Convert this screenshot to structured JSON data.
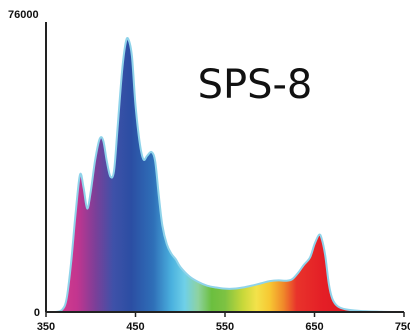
{
  "chart_data": {
    "type": "area",
    "title": "SPS-8",
    "xlabel": "",
    "ylabel": "",
    "xlim": [
      350,
      750
    ],
    "ylim": [
      0,
      76000
    ],
    "grid": false,
    "legend": "none",
    "x_ticks": [
      350,
      450,
      550,
      650,
      750
    ],
    "x_tick_labels": [
      "350",
      "450",
      "550",
      "650",
      "750"
    ],
    "y_ticks": [
      0,
      76000
    ],
    "y_tick_labels": [
      "0",
      "76000"
    ],
    "outline_color": "#8fd3ea",
    "axis_color": "#222222",
    "series": [
      {
        "values": [
          [
            350,
            0
          ],
          [
            360,
            0
          ],
          [
            368,
            600
          ],
          [
            373,
            3500
          ],
          [
            378,
            13000
          ],
          [
            383,
            26000
          ],
          [
            388,
            36500
          ],
          [
            392,
            33000
          ],
          [
            396,
            27500
          ],
          [
            400,
            32000
          ],
          [
            405,
            40500
          ],
          [
            410,
            46000
          ],
          [
            414,
            45500
          ],
          [
            418,
            40000
          ],
          [
            422,
            36000
          ],
          [
            426,
            37500
          ],
          [
            430,
            49000
          ],
          [
            435,
            64000
          ],
          [
            439,
            71500
          ],
          [
            442,
            72500
          ],
          [
            446,
            68000
          ],
          [
            450,
            55000
          ],
          [
            455,
            44500
          ],
          [
            459,
            40500
          ],
          [
            463,
            41500
          ],
          [
            468,
            42500
          ],
          [
            472,
            40000
          ],
          [
            476,
            31000
          ],
          [
            480,
            23000
          ],
          [
            485,
            18000
          ],
          [
            490,
            15500
          ],
          [
            495,
            14000
          ],
          [
            500,
            12000
          ],
          [
            510,
            9500
          ],
          [
            520,
            8000
          ],
          [
            530,
            7000
          ],
          [
            540,
            6500
          ],
          [
            550,
            6200
          ],
          [
            560,
            6200
          ],
          [
            570,
            6500
          ],
          [
            580,
            7000
          ],
          [
            590,
            7600
          ],
          [
            600,
            8200
          ],
          [
            610,
            8400
          ],
          [
            618,
            8300
          ],
          [
            625,
            8700
          ],
          [
            632,
            10500
          ],
          [
            638,
            12500
          ],
          [
            645,
            14500
          ],
          [
            650,
            18000
          ],
          [
            655,
            20500
          ],
          [
            658,
            19500
          ],
          [
            662,
            15000
          ],
          [
            666,
            7500
          ],
          [
            670,
            3500
          ],
          [
            676,
            1500
          ],
          [
            685,
            700
          ],
          [
            700,
            300
          ],
          [
            720,
            100
          ],
          [
            742,
            0
          ],
          [
            750,
            0
          ]
        ]
      }
    ],
    "spectrum_colors": [
      {
        "x": 365,
        "color": "#d43c8c"
      },
      {
        "x": 385,
        "color": "#c2358f"
      },
      {
        "x": 405,
        "color": "#7c3f98"
      },
      {
        "x": 425,
        "color": "#3f51a8"
      },
      {
        "x": 445,
        "color": "#2b4ea3"
      },
      {
        "x": 470,
        "color": "#2f6fb8"
      },
      {
        "x": 490,
        "color": "#4ab0de"
      },
      {
        "x": 505,
        "color": "#6fd0e8"
      },
      {
        "x": 520,
        "color": "#8ed2a0"
      },
      {
        "x": 535,
        "color": "#6bbf3f"
      },
      {
        "x": 550,
        "color": "#7dc242"
      },
      {
        "x": 570,
        "color": "#c8d83a"
      },
      {
        "x": 585,
        "color": "#f3e24a"
      },
      {
        "x": 600,
        "color": "#f7c733"
      },
      {
        "x": 615,
        "color": "#f08a2a"
      },
      {
        "x": 630,
        "color": "#e8332b"
      },
      {
        "x": 660,
        "color": "#e41e26"
      },
      {
        "x": 700,
        "color": "#d7191f"
      }
    ]
  }
}
